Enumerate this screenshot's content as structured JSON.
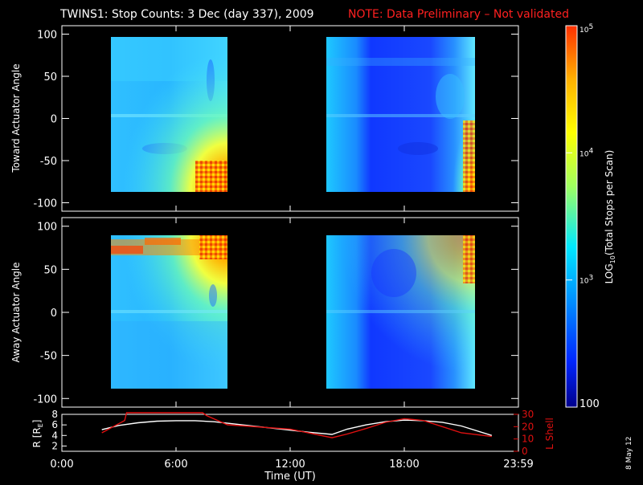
{
  "header": {
    "title": "TWINS1: Stop Counts:  3 Dec (day 337), 2009",
    "note": "NOTE: Data Preliminary – Not validated"
  },
  "colors": {
    "background": "#000000",
    "foreground": "#ffffff",
    "note": "#ff2020",
    "orbit_r": "#ffffff",
    "orbit_lshell": "#e01010",
    "colorbar_stops": [
      "#00008c",
      "#0026ff",
      "#0090ff",
      "#00e8ff",
      "#a0ff60",
      "#ffff00",
      "#ffb000",
      "#ff3000"
    ]
  },
  "side_label": "8 May 12",
  "chart_data": [
    {
      "type": "heatmap",
      "panel": "top",
      "ylabel": "Toward Actuator Angle",
      "ylim": [
        -110,
        110
      ],
      "yticks": [
        100,
        50,
        0,
        -50,
        -100
      ],
      "xlim_hours": [
        0,
        24
      ],
      "data_intervals_hours": [
        [
          2.0,
          8.6
        ],
        [
          14.2,
          22.6
        ]
      ],
      "angle_range": [
        -90,
        90
      ],
      "color_scale": "log10 stops per scan"
    },
    {
      "type": "heatmap",
      "panel": "bottom",
      "ylabel": "Away Actuator Angle",
      "ylim": [
        -110,
        110
      ],
      "yticks": [
        100,
        50,
        0,
        -50,
        -100
      ],
      "xlim_hours": [
        0,
        24
      ],
      "data_intervals_hours": [
        [
          2.0,
          8.6
        ],
        [
          14.2,
          22.6
        ]
      ],
      "angle_range": [
        -90,
        90
      ],
      "color_scale": "log10 stops per scan"
    },
    {
      "type": "line",
      "panel": "orbit",
      "xlabel": "Time (UT)",
      "xticks_hours": [
        0,
        6,
        12,
        18,
        24
      ],
      "xtick_labels": [
        "0:00",
        "6:00",
        "12:00",
        "18:00",
        "23:59"
      ],
      "ylabel_left": "R [R",
      "ylabel_left_sub": "E",
      "ylabel_left_end": "]",
      "ylim_left": [
        1,
        8
      ],
      "yticks_left": [
        "8",
        "6",
        "4",
        "2"
      ],
      "ylabel_right": "L Shell",
      "ylim_right": [
        0,
        30
      ],
      "yticks_right": [
        "30",
        "20",
        "10",
        "0"
      ],
      "series": [
        {
          "name": "R",
          "x": [
            2.1,
            3,
            4,
            5,
            6,
            7,
            8,
            9,
            10,
            11,
            12,
            13,
            14.2,
            15,
            16,
            17,
            18,
            19,
            20,
            21,
            22.6
          ],
          "values": [
            5.1,
            5.9,
            6.4,
            6.7,
            6.8,
            6.8,
            6.6,
            6.2,
            5.8,
            5.4,
            5.0,
            4.6,
            4.2,
            5.2,
            6.0,
            6.6,
            6.9,
            6.8,
            6.5,
            5.8,
            4.0
          ]
        },
        {
          "name": "L Shell",
          "x": [
            2.1,
            3.3,
            3.4,
            7.4,
            7.6,
            8.7,
            12.0,
            14.2,
            15,
            16,
            17,
            18,
            19,
            20,
            21,
            22.6
          ],
          "values": [
            15,
            25,
            32,
            32,
            29,
            21.5,
            18,
            11,
            14,
            18.5,
            23.5,
            26.5,
            25,
            20,
            15,
            12
          ]
        }
      ]
    }
  ],
  "colorbar": {
    "label_main": "LOG",
    "label_sub": "10",
    "label_rest": "(Total Stops per Scan)",
    "decades": [
      2,
      3,
      4,
      5
    ],
    "tick_labels": [
      "100",
      "10",
      "10",
      "10"
    ],
    "tick_exponents": [
      "",
      "3",
      "4",
      "5"
    ]
  }
}
